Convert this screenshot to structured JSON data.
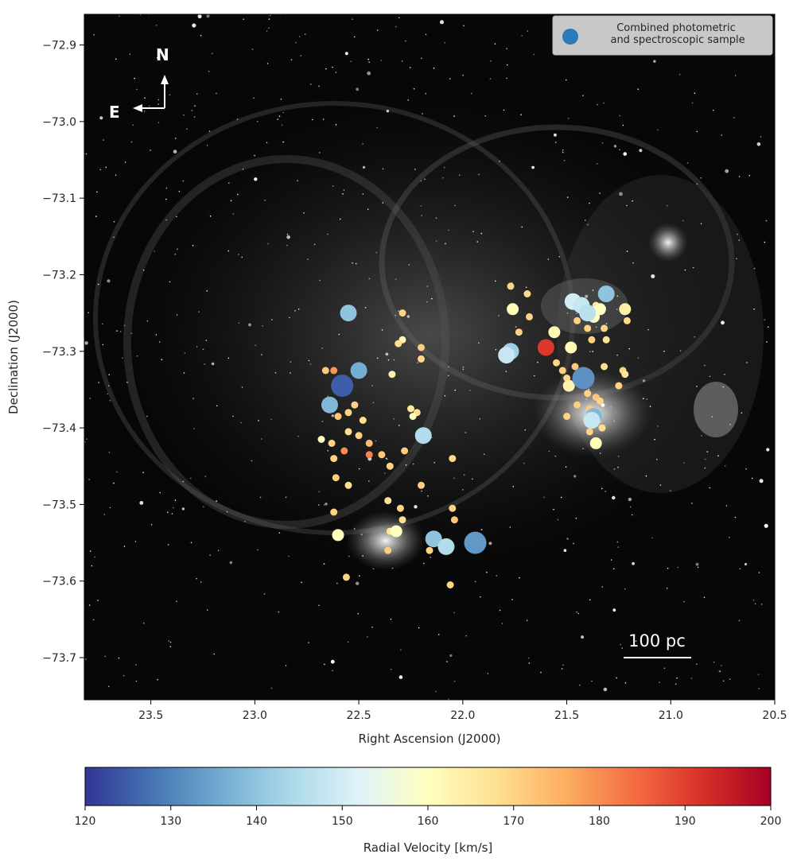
{
  "chart_data": {
    "type": "scatter",
    "xlabel": "Right Ascension (J2000)",
    "ylabel": "Declination (J2000)",
    "xlim": [
      23.82,
      20.5
    ],
    "ylim": [
      -73.755,
      -72.86
    ],
    "x_inverted": true,
    "xticks": [
      23.5,
      23.0,
      22.5,
      22.0,
      21.5,
      21.0,
      20.5
    ],
    "xtick_labels": [
      "23.5",
      "23.0",
      "22.5",
      "22.0",
      "21.5",
      "21.0",
      "20.5"
    ],
    "yticks": [
      -72.9,
      -73.0,
      -73.1,
      -73.2,
      -73.3,
      -73.4,
      -73.5,
      -73.6,
      -73.7
    ],
    "ytick_labels": [
      "−72.9",
      "−73.0",
      "−73.1",
      "−73.2",
      "−73.3",
      "−73.4",
      "−73.5",
      "−73.6",
      "−73.7"
    ],
    "background": "greyscale nebula image (H-alpha shell)",
    "legend": {
      "label": "Combined photometric\n and spectroscopic sample",
      "placement": "top-right",
      "marker_color": "#2b7bba"
    },
    "compass": {
      "north_label": "N",
      "east_label": "E",
      "placement": "top-left"
    },
    "scale_bar": {
      "label": "100 pc",
      "placement": "bottom-right"
    },
    "colorbar": {
      "label": "Radial Velocity [km/s]",
      "colormap": "RdYlBu_r",
      "range": [
        120,
        200
      ],
      "ticks": [
        120,
        130,
        140,
        150,
        160,
        170,
        180,
        190,
        200
      ],
      "tick_labels": [
        "120",
        "130",
        "140",
        "150",
        "160",
        "170",
        "180",
        "190",
        "200"
      ],
      "stops": [
        "#313695",
        "#4575b4",
        "#74add1",
        "#abd9e9",
        "#e0f3f8",
        "#ffffbf",
        "#fee090",
        "#fdae61",
        "#f46d43",
        "#d73027",
        "#a50026"
      ]
    },
    "points_format": [
      "ra",
      "dec",
      "radial_velocity_km_s",
      "size_class"
    ],
    "points": [
      [
        22.55,
        -73.25,
        140,
        "large"
      ],
      [
        22.5,
        -73.325,
        136,
        "large"
      ],
      [
        22.58,
        -73.345,
        125,
        "xl"
      ],
      [
        22.64,
        -73.37,
        138,
        "large"
      ],
      [
        22.62,
        -73.325,
        179,
        "small"
      ],
      [
        22.66,
        -73.325,
        172,
        "small"
      ],
      [
        22.55,
        -73.38,
        170,
        "small"
      ],
      [
        22.6,
        -73.385,
        172,
        "small"
      ],
      [
        22.52,
        -73.37,
        170,
        "small"
      ],
      [
        22.48,
        -73.39,
        168,
        "small"
      ],
      [
        22.68,
        -73.415,
        160,
        "small"
      ],
      [
        22.63,
        -73.42,
        170,
        "small"
      ],
      [
        22.57,
        -73.43,
        180,
        "small"
      ],
      [
        22.55,
        -73.405,
        168,
        "small"
      ],
      [
        22.5,
        -73.41,
        170,
        "small"
      ],
      [
        22.45,
        -73.42,
        174,
        "small"
      ],
      [
        22.45,
        -73.435,
        181,
        "small"
      ],
      [
        22.39,
        -73.435,
        172,
        "small"
      ],
      [
        22.62,
        -73.44,
        170,
        "small"
      ],
      [
        22.61,
        -73.465,
        171,
        "small"
      ],
      [
        22.55,
        -73.475,
        168,
        "small"
      ],
      [
        22.35,
        -73.45,
        170,
        "small"
      ],
      [
        22.29,
        -73.25,
        170,
        "small"
      ],
      [
        22.29,
        -73.285,
        162,
        "small"
      ],
      [
        22.31,
        -73.29,
        168,
        "small"
      ],
      [
        22.2,
        -73.295,
        171,
        "small"
      ],
      [
        22.2,
        -73.31,
        169,
        "small"
      ],
      [
        22.34,
        -73.33,
        163,
        "small"
      ],
      [
        22.25,
        -73.375,
        166,
        "small"
      ],
      [
        22.22,
        -73.38,
        168,
        "small"
      ],
      [
        22.24,
        -73.385,
        160,
        "small"
      ],
      [
        22.19,
        -73.41,
        145,
        "large"
      ],
      [
        22.28,
        -73.43,
        171,
        "small"
      ],
      [
        22.2,
        -73.475,
        171,
        "small"
      ],
      [
        22.05,
        -73.44,
        169,
        "small"
      ],
      [
        22.36,
        -73.495,
        168,
        "small"
      ],
      [
        22.3,
        -73.505,
        170,
        "small"
      ],
      [
        22.29,
        -73.52,
        168,
        "small"
      ],
      [
        22.05,
        -73.505,
        170,
        "small"
      ],
      [
        22.04,
        -73.52,
        172,
        "small"
      ],
      [
        22.62,
        -73.51,
        170,
        "small"
      ],
      [
        22.6,
        -73.54,
        160,
        "medium"
      ],
      [
        22.32,
        -73.535,
        160,
        "medium"
      ],
      [
        22.35,
        -73.535,
        166,
        "small"
      ],
      [
        22.36,
        -73.56,
        171,
        "small"
      ],
      [
        22.16,
        -73.56,
        170,
        "small"
      ],
      [
        22.14,
        -73.545,
        140,
        "large"
      ],
      [
        22.08,
        -73.555,
        145,
        "large"
      ],
      [
        21.94,
        -73.55,
        133,
        "xl"
      ],
      [
        22.56,
        -73.595,
        170,
        "small"
      ],
      [
        22.06,
        -73.605,
        170,
        "small"
      ],
      [
        21.77,
        -73.215,
        170,
        "small"
      ],
      [
        21.69,
        -73.225,
        169,
        "small"
      ],
      [
        21.76,
        -73.245,
        161,
        "medium"
      ],
      [
        21.68,
        -73.255,
        170,
        "small"
      ],
      [
        21.73,
        -73.275,
        170,
        "small"
      ],
      [
        21.56,
        -73.275,
        162,
        "medium"
      ],
      [
        21.6,
        -73.295,
        191,
        "large"
      ],
      [
        21.77,
        -73.3,
        142,
        "large"
      ],
      [
        21.79,
        -73.305,
        148,
        "large"
      ],
      [
        21.47,
        -73.235,
        150,
        "large"
      ],
      [
        21.43,
        -73.24,
        148,
        "large"
      ],
      [
        21.4,
        -73.25,
        146,
        "large"
      ],
      [
        21.31,
        -73.225,
        140,
        "large"
      ],
      [
        21.36,
        -73.24,
        165,
        "small"
      ],
      [
        21.34,
        -73.245,
        160,
        "medium"
      ],
      [
        21.22,
        -73.245,
        164,
        "medium"
      ],
      [
        21.21,
        -73.26,
        169,
        "small"
      ],
      [
        21.45,
        -73.26,
        170,
        "small"
      ],
      [
        21.4,
        -73.27,
        170,
        "small"
      ],
      [
        21.37,
        -73.255,
        160,
        "medium"
      ],
      [
        21.32,
        -73.27,
        170,
        "small"
      ],
      [
        21.38,
        -73.285,
        170,
        "small"
      ],
      [
        21.31,
        -73.285,
        167,
        "small"
      ],
      [
        21.48,
        -73.295,
        162,
        "medium"
      ],
      [
        21.55,
        -73.315,
        170,
        "small"
      ],
      [
        21.52,
        -73.325,
        171,
        "small"
      ],
      [
        21.5,
        -73.335,
        169,
        "small"
      ],
      [
        21.46,
        -73.32,
        172,
        "small"
      ],
      [
        21.42,
        -73.335,
        132,
        "xl"
      ],
      [
        21.32,
        -73.32,
        168,
        "small"
      ],
      [
        21.23,
        -73.325,
        170,
        "small"
      ],
      [
        21.22,
        -73.33,
        167,
        "small"
      ],
      [
        21.25,
        -73.345,
        170,
        "small"
      ],
      [
        21.49,
        -73.345,
        163,
        "medium"
      ],
      [
        21.4,
        -73.355,
        170,
        "small"
      ],
      [
        21.36,
        -73.36,
        172,
        "small"
      ],
      [
        21.34,
        -73.365,
        170,
        "small"
      ],
      [
        21.45,
        -73.37,
        171,
        "small"
      ],
      [
        21.39,
        -73.375,
        172,
        "small"
      ],
      [
        21.37,
        -73.385,
        138,
        "large"
      ],
      [
        21.35,
        -73.39,
        170,
        "small"
      ],
      [
        21.33,
        -73.4,
        168,
        "small"
      ],
      [
        21.39,
        -73.405,
        170,
        "small"
      ],
      [
        21.36,
        -73.42,
        161,
        "medium"
      ],
      [
        21.5,
        -73.385,
        170,
        "small"
      ],
      [
        21.38,
        -73.39,
        148,
        "large"
      ]
    ]
  }
}
